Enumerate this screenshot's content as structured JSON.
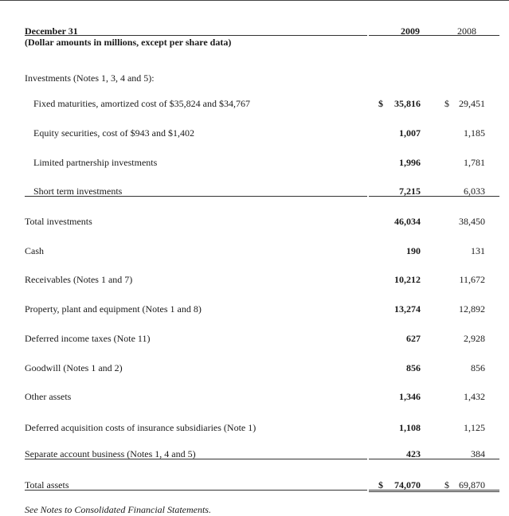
{
  "header": {
    "date_label": "December 31",
    "units_label": "(Dollar amounts in millions, except per share data)",
    "col_2009": "2009",
    "col_2008": "2008"
  },
  "section_label": "Investments (Notes 1, 3, 4 and 5):",
  "investments": [
    {
      "label": "Fixed maturities, amortized cost of $35,824 and $34,767",
      "dollar": "$",
      "v2009": "35,816",
      "v2008": "29,451"
    },
    {
      "label": "Equity securities, cost of $943 and $1,402",
      "v2009": "1,007",
      "v2008": "1,185"
    },
    {
      "label": "Limited partnership investments",
      "v2009": "1,996",
      "v2008": "1,781"
    },
    {
      "label": "Short term investments",
      "v2009": "7,215",
      "v2008": "6,033"
    }
  ],
  "total_investments": {
    "label": "Total investments",
    "v2009": "46,034",
    "v2008": "38,450"
  },
  "rows": [
    {
      "label": "Cash",
      "v2009": "190",
      "v2008": "131"
    },
    {
      "label": "Receivables (Notes 1 and 7)",
      "v2009": "10,212",
      "v2008": "11,672"
    },
    {
      "label": "Property, plant and equipment (Notes 1 and 8)",
      "v2009": "13,274",
      "v2008": "12,892"
    },
    {
      "label": "Deferred income taxes (Note 11)",
      "v2009": "627",
      "v2008": "2,928"
    },
    {
      "label": "Goodwill (Notes 1 and 2)",
      "v2009": "856",
      "v2008": "856"
    },
    {
      "label": "Other assets",
      "v2009": "1,346",
      "v2008": "1,432"
    },
    {
      "label": "Deferred acquisition costs of insurance subsidiaries (Note 1)",
      "v2009": "1,108",
      "v2008": "1,125"
    },
    {
      "label": "Separate account business (Notes 1, 4 and 5)",
      "v2009": "423",
      "v2008": "384"
    }
  ],
  "total_assets": {
    "label": "Total assets",
    "dollar": "$",
    "v2009": "74,070",
    "v2008": "69,870"
  },
  "footnote": "See Notes to Consolidated Financial Statements."
}
